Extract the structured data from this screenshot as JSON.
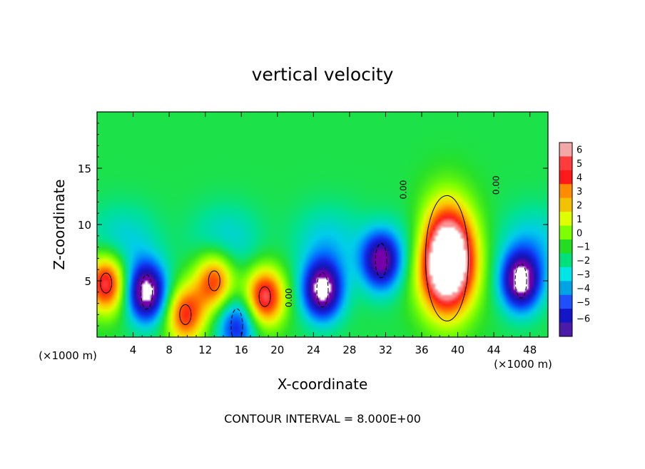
{
  "chart_data": {
    "type": "heatmap",
    "title": "vertical velocity",
    "xlabel": "X-coordinate",
    "ylabel": "Z-coordinate",
    "xunit_left": "(×1000 m)",
    "xunit_right": "(×1000 m)",
    "xlim": [
      0,
      50
    ],
    "ylim": [
      0,
      20
    ],
    "xticks": [
      4,
      8,
      12,
      16,
      20,
      24,
      28,
      32,
      36,
      40,
      44,
      48
    ],
    "yticks": [
      5,
      10,
      15
    ],
    "colorbar": {
      "range": [
        -6,
        6
      ],
      "ticks": [
        6,
        5,
        4,
        3,
        2,
        1,
        0,
        -1,
        -2,
        -3,
        -4,
        -5,
        -6
      ],
      "colors": [
        "#f4a7a7",
        "#ff3b3b",
        "#ff1a1a",
        "#ff8c00",
        "#f2c200",
        "#dfff00",
        "#7dff00",
        "#22dd22",
        "#00e07a",
        "#00e6e6",
        "#00a3e6",
        "#1f4fff",
        "#1515c8",
        "#4b1aa8"
      ]
    },
    "contour_label": "0.00",
    "footer": "CONTOUR INTERVAL = 8.000E+00",
    "updrafts": [
      {
        "x": 1.0,
        "z": 4.8,
        "amp": 6
      },
      {
        "x": 9.8,
        "z": 2.0,
        "amp": 5
      },
      {
        "x": 13.0,
        "z": 5.0,
        "amp": 5
      },
      {
        "x": 18.6,
        "z": 3.6,
        "amp": 6
      },
      {
        "x": 38.8,
        "z": 7.0,
        "amp": 12
      }
    ],
    "downdrafts": [
      {
        "x": 5.5,
        "z": 4.0,
        "amp": -7
      },
      {
        "x": 25.0,
        "z": 4.2,
        "amp": -7
      },
      {
        "x": 31.5,
        "z": 6.8,
        "amp": -6
      },
      {
        "x": 47.0,
        "z": 5.0,
        "amp": -7
      },
      {
        "x": 15.5,
        "z": 1.0,
        "amp": -4
      }
    ]
  }
}
